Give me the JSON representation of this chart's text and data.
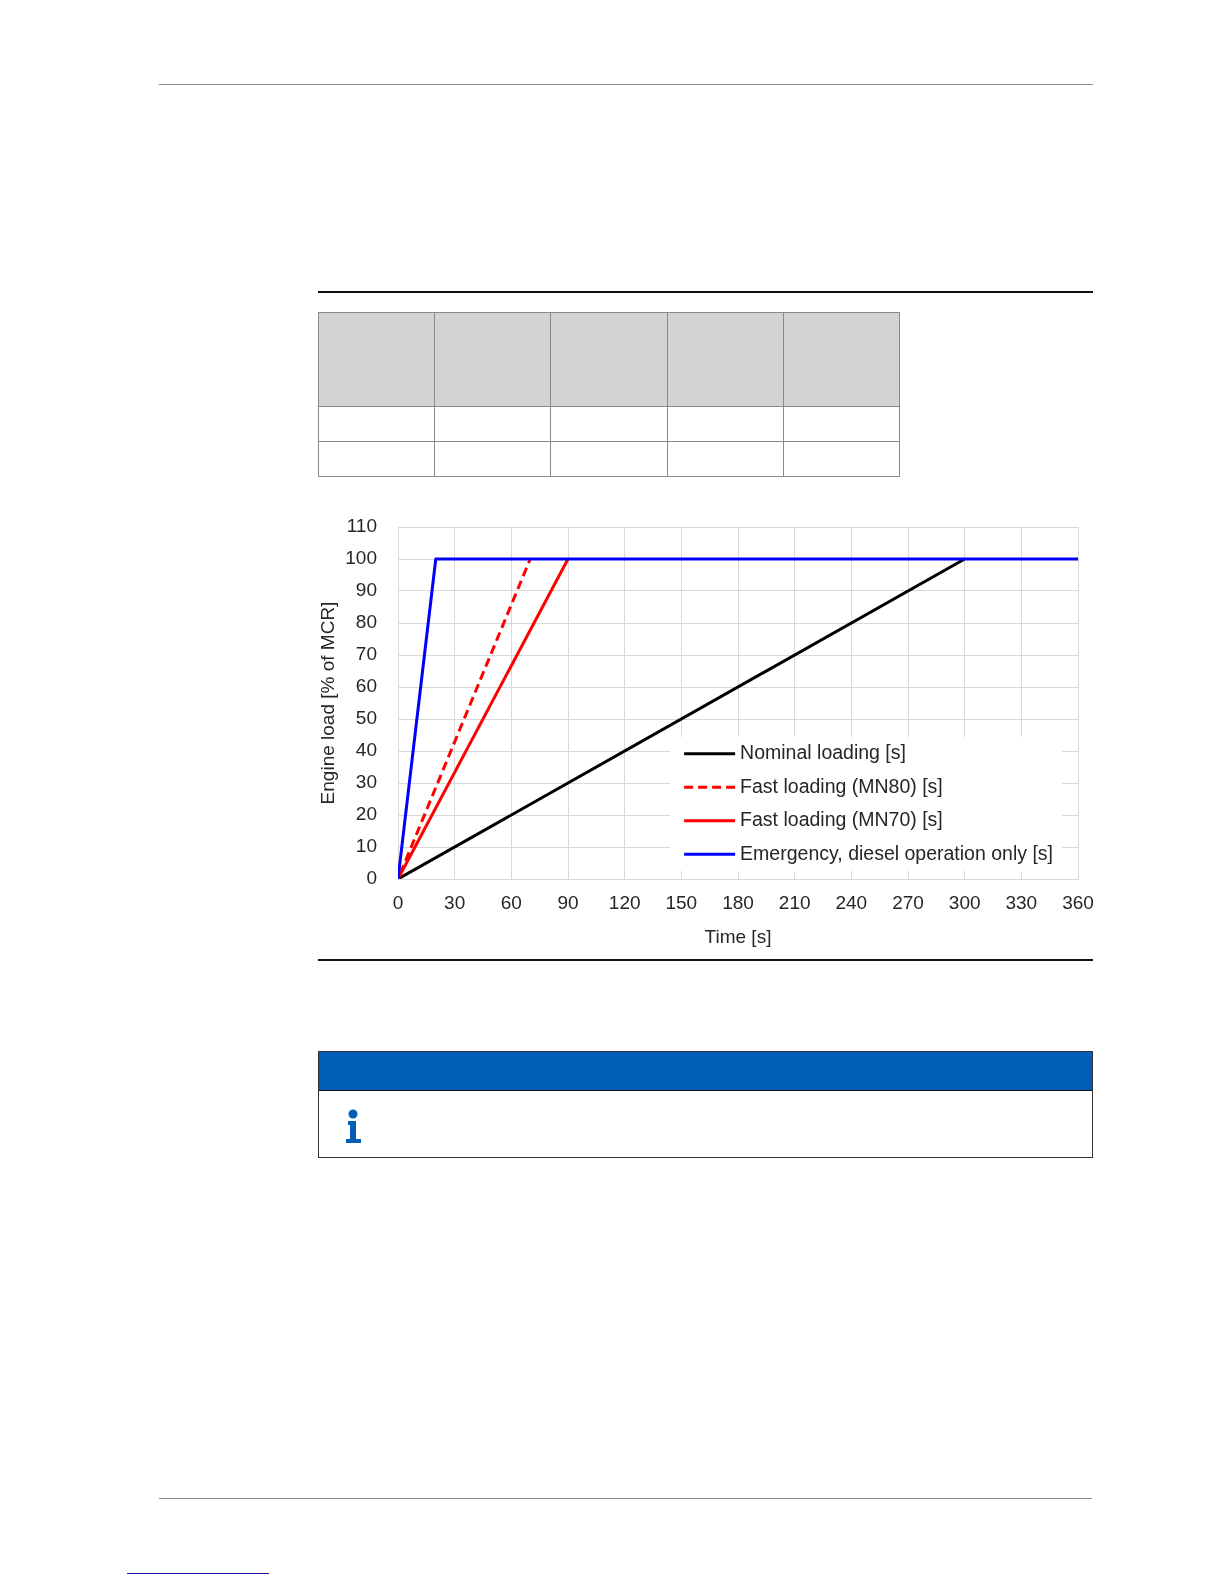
{
  "chart_data": {
    "type": "line",
    "xlabel": "Time [s]",
    "ylabel": "Engine load [% of MCR]",
    "xlim": [
      0,
      360
    ],
    "xticks": [
      0,
      30,
      60,
      90,
      120,
      150,
      180,
      210,
      240,
      270,
      300,
      330,
      360
    ],
    "ylim": [
      0,
      110
    ],
    "yticks": [
      0,
      10,
      20,
      30,
      40,
      50,
      60,
      70,
      80,
      90,
      100,
      110
    ],
    "grid": true,
    "legend": "bottom right",
    "marker": "none",
    "series": [
      {
        "name": "Nominal loading [s]",
        "color": "#000000",
        "x": [
          0,
          300
        ],
        "values": [
          0,
          100
        ]
      },
      {
        "name": "Fast loading (MN80) [s]",
        "color": "#ff0000",
        "line_style": "dashed",
        "x": [
          0,
          70
        ],
        "values": [
          0,
          100
        ]
      },
      {
        "name": "Fast loading (MN70) [s]",
        "color": "#ff0000",
        "x": [
          0,
          90
        ],
        "values": [
          0,
          100
        ]
      },
      {
        "name": "Emergency, diesel operation only [s]",
        "color": "#0000ff",
        "x": [
          0,
          20,
          360
        ],
        "values": [
          0,
          100,
          100
        ]
      }
    ]
  }
}
